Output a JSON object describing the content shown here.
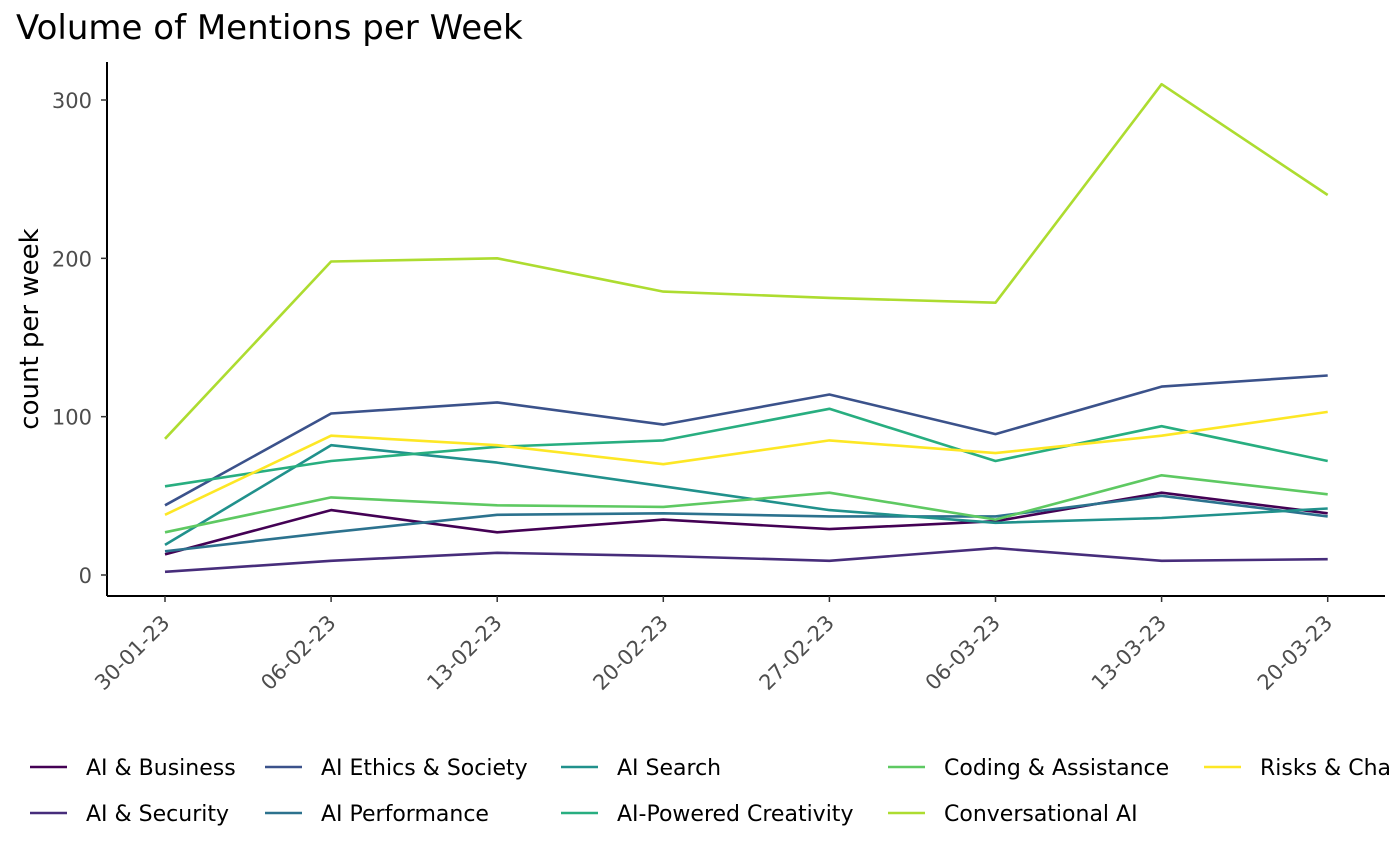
{
  "chart_data": {
    "type": "line",
    "title": "Volume of Mentions per Week",
    "xlabel": "",
    "ylabel": "count per week",
    "ylim": [
      -12,
      325
    ],
    "yticks": [
      0,
      100,
      200,
      300
    ],
    "x": [
      "30-01-23",
      "06-02-23",
      "13-02-23",
      "20-02-23",
      "27-02-23",
      "06-03-23",
      "13-03-23",
      "20-03-23"
    ],
    "grid": false,
    "legend_position": "bottom",
    "series": [
      {
        "name": "AI & Business",
        "color": "#440154",
        "values": [
          13,
          41,
          27,
          35,
          29,
          34,
          52,
          39
        ]
      },
      {
        "name": "AI & Security",
        "color": "#472d7b",
        "values": [
          2,
          9,
          14,
          12,
          9,
          17,
          9,
          10
        ]
      },
      {
        "name": "AI Ethics & Society",
        "color": "#3b528b",
        "values": [
          44,
          102,
          109,
          95,
          114,
          89,
          119,
          126
        ]
      },
      {
        "name": "AI Performance",
        "color": "#2c728e",
        "values": [
          15,
          27,
          38,
          39,
          37,
          37,
          50,
          37
        ]
      },
      {
        "name": "AI Search",
        "color": "#21918c",
        "values": [
          19,
          82,
          71,
          56,
          41,
          33,
          36,
          42
        ]
      },
      {
        "name": "AI-Powered Creativity",
        "color": "#28ae80",
        "values": [
          56,
          72,
          81,
          85,
          105,
          72,
          94,
          72
        ]
      },
      {
        "name": "Coding & Assistance",
        "color": "#5ec962",
        "values": [
          27,
          49,
          44,
          43,
          52,
          35,
          63,
          51
        ]
      },
      {
        "name": "Conversational AI",
        "color": "#addc30",
        "values": [
          86,
          198,
          200,
          179,
          175,
          172,
          310,
          240
        ]
      },
      {
        "name": "Risks & Cha",
        "color": "#fde725",
        "values": [
          38,
          88,
          82,
          70,
          85,
          77,
          88,
          103
        ]
      }
    ]
  }
}
